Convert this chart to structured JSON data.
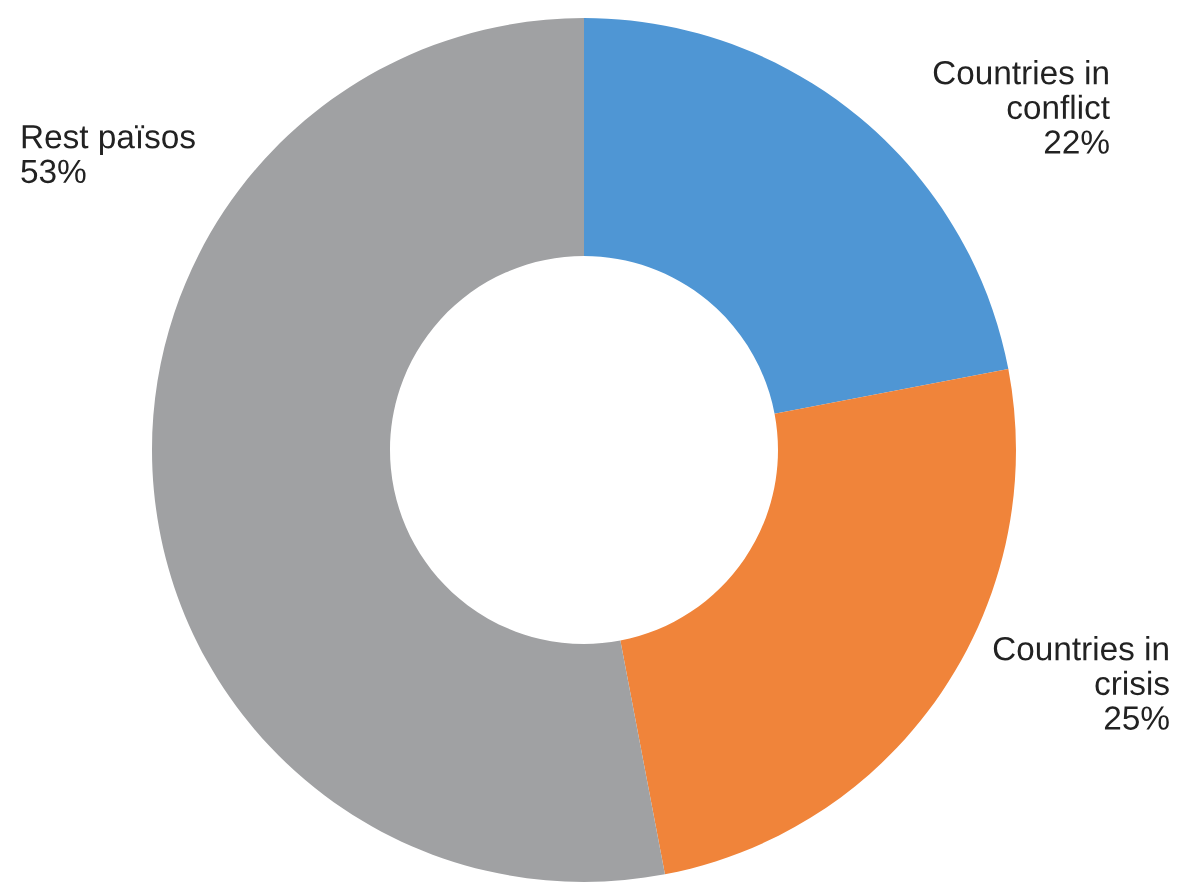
{
  "chart_data": {
    "type": "donut",
    "categories": [
      "Countries in\nconflict",
      "Countries in\ncrisis",
      "Rest països"
    ],
    "values": [
      22,
      25,
      53
    ],
    "value_labels": [
      "22%",
      "25%",
      "53%"
    ],
    "colors": [
      "#4f96d4",
      "#f0843a",
      "#a0a1a3"
    ],
    "legend": false
  }
}
